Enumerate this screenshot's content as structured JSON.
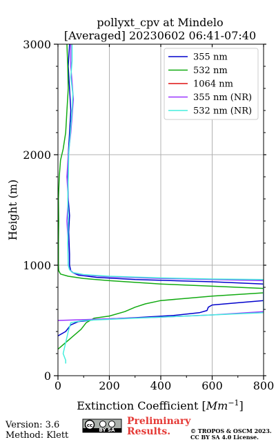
{
  "chart_data": {
    "type": "line",
    "title_line1": "pollyxt_cpv at Mindelo",
    "title_line2": "[Averaged] 20230602 06:41-07:40",
    "xlabel": "Extinction Coefficient [",
    "xlabel_unit": "Mm",
    "xlabel_exp": "−1",
    "xlabel_close": "]",
    "ylabel": "Height (m)",
    "xlim": [
      0,
      800
    ],
    "ylim": [
      0,
      3000
    ],
    "x_ticks": [
      0,
      200,
      400,
      600,
      800
    ],
    "x_tick_labels": [
      "0",
      "200",
      "400",
      "600",
      "800"
    ],
    "y_ticks": [
      0,
      1000,
      2000,
      3000
    ],
    "y_tick_labels": [
      "0",
      "1000",
      "2000",
      "3000"
    ],
    "grid": true,
    "legend_position": "top-right",
    "series": [
      {
        "name": "355 nm",
        "color": "#0000cc",
        "points": [
          [
            0,
            360
          ],
          [
            30,
            400
          ],
          [
            50,
            460
          ],
          [
            80,
            490
          ],
          [
            160,
            510
          ],
          [
            300,
            525
          ],
          [
            450,
            545
          ],
          [
            550,
            570
          ],
          [
            580,
            590
          ],
          [
            585,
            620
          ],
          [
            600,
            640
          ],
          [
            700,
            660
          ],
          [
            800,
            680
          ],
          [
            800,
            830
          ],
          [
            600,
            850
          ],
          [
            300,
            870
          ],
          [
            150,
            890
          ],
          [
            80,
            910
          ],
          [
            60,
            930
          ],
          [
            50,
            950
          ],
          [
            45,
            1000
          ],
          [
            45,
            1100
          ],
          [
            42,
            1300
          ],
          [
            45,
            1450
          ],
          [
            40,
            1600
          ],
          [
            38,
            1800
          ],
          [
            40,
            2000
          ],
          [
            45,
            2200
          ],
          [
            50,
            2400
          ],
          [
            45,
            2600
          ],
          [
            40,
            2800
          ],
          [
            45,
            3000
          ]
        ]
      },
      {
        "name": "532 nm",
        "color": "#11aa11",
        "points": [
          [
            0,
            240
          ],
          [
            30,
            300
          ],
          [
            60,
            360
          ],
          [
            90,
            420
          ],
          [
            110,
            480
          ],
          [
            140,
            520
          ],
          [
            200,
            540
          ],
          [
            260,
            580
          ],
          [
            300,
            620
          ],
          [
            340,
            650
          ],
          [
            400,
            680
          ],
          [
            500,
            700
          ],
          [
            600,
            720
          ],
          [
            700,
            735
          ],
          [
            800,
            750
          ],
          [
            800,
            790
          ],
          [
            600,
            810
          ],
          [
            400,
            830
          ],
          [
            200,
            860
          ],
          [
            100,
            880
          ],
          [
            40,
            900
          ],
          [
            10,
            920
          ],
          [
            3,
            950
          ],
          [
            2,
            1000
          ],
          [
            2,
            1200
          ],
          [
            3,
            1400
          ],
          [
            2,
            1600
          ],
          [
            5,
            1800
          ],
          [
            10,
            1950
          ],
          [
            20,
            2050
          ],
          [
            30,
            2200
          ],
          [
            35,
            2400
          ],
          [
            40,
            2600
          ],
          [
            38,
            2800
          ],
          [
            35,
            3000
          ]
        ]
      },
      {
        "name": "1064 nm",
        "color": "#dd1111",
        "points": []
      },
      {
        "name": "355 nm (NR)",
        "color": "#9933ff",
        "points": [
          [
            0,
            500
          ],
          [
            200,
            515
          ],
          [
            400,
            530
          ],
          [
            600,
            550
          ],
          [
            800,
            580
          ],
          [
            800,
            860
          ],
          [
            600,
            870
          ],
          [
            400,
            880
          ],
          [
            200,
            895
          ],
          [
            100,
            910
          ],
          [
            60,
            930
          ],
          [
            45,
            960
          ],
          [
            40,
            1000
          ],
          [
            40,
            1200
          ],
          [
            35,
            1400
          ],
          [
            40,
            1600
          ],
          [
            35,
            1800
          ],
          [
            40,
            2000
          ],
          [
            50,
            2200
          ],
          [
            55,
            2350
          ],
          [
            60,
            2500
          ],
          [
            55,
            2650
          ],
          [
            50,
            2800
          ],
          [
            50,
            3000
          ]
        ]
      },
      {
        "name": "532 nm (NR)",
        "color": "#44eedd",
        "points": [
          [
            30,
            110
          ],
          [
            30,
            140
          ],
          [
            20,
            200
          ],
          [
            30,
            300
          ],
          [
            40,
            400
          ],
          [
            50,
            480
          ],
          [
            100,
            500
          ],
          [
            300,
            520
          ],
          [
            500,
            540
          ],
          [
            800,
            570
          ],
          [
            800,
            870
          ],
          [
            600,
            875
          ],
          [
            400,
            885
          ],
          [
            200,
            900
          ],
          [
            100,
            915
          ],
          [
            55,
            935
          ],
          [
            45,
            960
          ],
          [
            40,
            1000
          ],
          [
            38,
            1200
          ],
          [
            40,
            1400
          ],
          [
            38,
            1600
          ],
          [
            40,
            1800
          ],
          [
            42,
            2000
          ],
          [
            48,
            2200
          ],
          [
            55,
            2400
          ],
          [
            58,
            2550
          ],
          [
            50,
            2700
          ],
          [
            55,
            2850
          ],
          [
            55,
            3000
          ]
        ]
      }
    ]
  },
  "footer": {
    "version": "Version: 3.6",
    "method": "Method: Klett",
    "preliminary_line1": "Preliminary",
    "preliminary_line2": "Results.",
    "copyright_line1": "© TROPOS & OSCM 2023.",
    "copyright_line2": "CC BY SA 4.0 License.",
    "cc_badge": "cc",
    "by_sa_text": "BY SA"
  }
}
